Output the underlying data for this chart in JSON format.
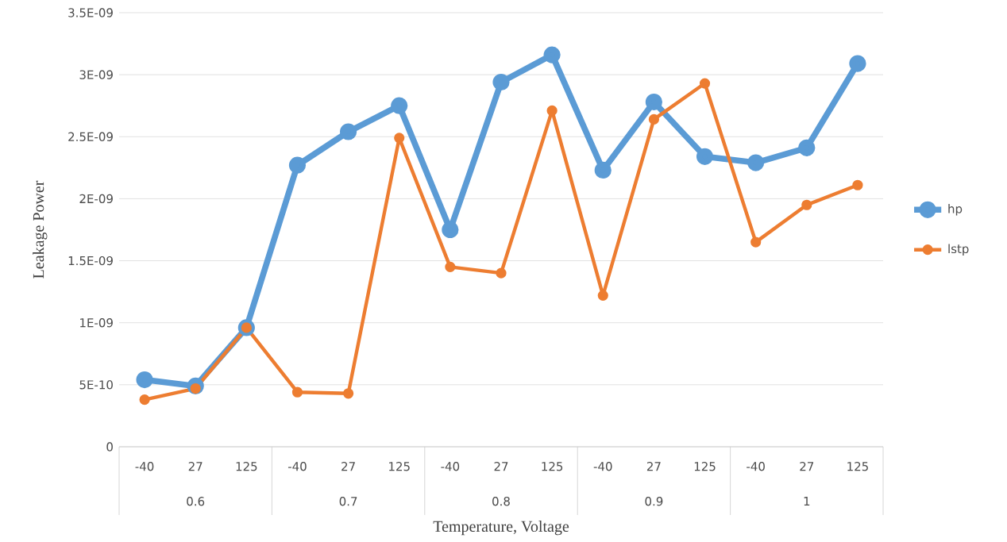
{
  "chart_data": {
    "type": "line",
    "xlabel": "Temperature, Voltage",
    "ylabel": "Leakage Power",
    "categories": [
      "-40",
      "27",
      "125",
      "-40",
      "27",
      "125",
      "-40",
      "27",
      "125",
      "-40",
      "27",
      "125",
      "-40",
      "27",
      "125"
    ],
    "annotations": [
      "0.6",
      "0.7",
      "0.8",
      "0.9",
      "1"
    ],
    "series": [
      {
        "name": "hp",
        "color": "#5b9bd5",
        "values": [
          5.4e-10,
          4.9e-10,
          9.6e-10,
          2.27e-09,
          2.54e-09,
          2.75e-09,
          1.75e-09,
          2.94e-09,
          3.16e-09,
          2.23e-09,
          2.78e-09,
          2.34e-09,
          2.29e-09,
          2.41e-09,
          3.09e-09
        ]
      },
      {
        "name": "lstp",
        "color": "#ed7d31",
        "values": [
          3.8e-10,
          4.7e-10,
          9.6e-10,
          4.4e-10,
          4.3e-10,
          2.49e-09,
          1.45e-09,
          1.4e-09,
          2.71e-09,
          1.22e-09,
          2.64e-09,
          2.93e-09,
          1.65e-09,
          1.95e-09,
          2.11e-09
        ]
      }
    ],
    "ylim": [
      0,
      3.5e-09
    ],
    "yticks": [
      0,
      {
        "value": 5e-10,
        "label": "5E-10"
      },
      {
        "value": 1e-09,
        "label": "1E-09"
      },
      {
        "value": 1.5e-09,
        "label": "1.5E-09"
      },
      {
        "value": 2e-09,
        "label": "2E-09"
      },
      {
        "value": 2.5e-09,
        "label": "2.5E-09"
      },
      {
        "value": 3e-09,
        "label": "3E-09"
      },
      {
        "value": 3.5e-09,
        "label": "3.5E-09"
      }
    ],
    "grid": "y",
    "legend": "right",
    "marker": "circle",
    "line_style": "solid"
  }
}
